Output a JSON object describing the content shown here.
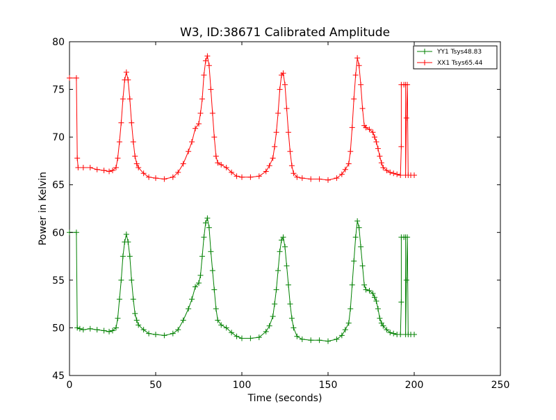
{
  "chart_data": {
    "type": "line",
    "title": "W3, ID:38671 Calibrated Amplitude",
    "xlabel": "Time (seconds)",
    "ylabel": "Power in Kelvin",
    "xlim": [
      0,
      250
    ],
    "ylim": [
      45,
      80
    ],
    "xticks": [
      0,
      50,
      100,
      150,
      200,
      250
    ],
    "yticks": [
      45,
      50,
      55,
      60,
      65,
      70,
      75,
      80
    ],
    "grid": false,
    "legend_position": "top-right",
    "marker": "+",
    "series": [
      {
        "name": "YY1 Tsys48.83",
        "color": "#008000",
        "points": [
          [
            0,
            60
          ],
          [
            4,
            60
          ],
          [
            4.5,
            50
          ],
          [
            6,
            49.9
          ],
          [
            8,
            49.8
          ],
          [
            12,
            49.9
          ],
          [
            16,
            49.8
          ],
          [
            20,
            49.7
          ],
          [
            23,
            49.6
          ],
          [
            25,
            49.7
          ],
          [
            27,
            50
          ],
          [
            28,
            51
          ],
          [
            29,
            53
          ],
          [
            30,
            55
          ],
          [
            31,
            57.5
          ],
          [
            32,
            59
          ],
          [
            33,
            59.8
          ],
          [
            34,
            59
          ],
          [
            35,
            57.5
          ],
          [
            36,
            55
          ],
          [
            37,
            53
          ],
          [
            38,
            51.5
          ],
          [
            39,
            50.8
          ],
          [
            40,
            50.3
          ],
          [
            43,
            49.8
          ],
          [
            46,
            49.4
          ],
          [
            50,
            49.3
          ],
          [
            55,
            49.2
          ],
          [
            60,
            49.4
          ],
          [
            63,
            49.8
          ],
          [
            66,
            50.8
          ],
          [
            69,
            52
          ],
          [
            71,
            53
          ],
          [
            73,
            54.3
          ],
          [
            75,
            54.7
          ],
          [
            76,
            55.5
          ],
          [
            77,
            57.5
          ],
          [
            78,
            59.5
          ],
          [
            79,
            61
          ],
          [
            80,
            61.5
          ],
          [
            81,
            60.5
          ],
          [
            82,
            58
          ],
          [
            83,
            56
          ],
          [
            84,
            54
          ],
          [
            85,
            52
          ],
          [
            86,
            50.8
          ],
          [
            88,
            50.3
          ],
          [
            91,
            50
          ],
          [
            94,
            49.5
          ],
          [
            97,
            49.1
          ],
          [
            100,
            48.9
          ],
          [
            105,
            48.9
          ],
          [
            110,
            49
          ],
          [
            114,
            49.6
          ],
          [
            116,
            50.2
          ],
          [
            118,
            51.2
          ],
          [
            119,
            52.5
          ],
          [
            120,
            54
          ],
          [
            121,
            56
          ],
          [
            122,
            58
          ],
          [
            123,
            59.2
          ],
          [
            124,
            59.5
          ],
          [
            125,
            58.5
          ],
          [
            126,
            56.5
          ],
          [
            127,
            54.5
          ],
          [
            128,
            52.5
          ],
          [
            129,
            51
          ],
          [
            130,
            50
          ],
          [
            132,
            49.1
          ],
          [
            135,
            48.8
          ],
          [
            140,
            48.7
          ],
          [
            145,
            48.7
          ],
          [
            150,
            48.6
          ],
          [
            155,
            48.8
          ],
          [
            158,
            49.2
          ],
          [
            160,
            49.8
          ],
          [
            162,
            50.5
          ],
          [
            163,
            52
          ],
          [
            164,
            54.5
          ],
          [
            165,
            57
          ],
          [
            166,
            59.5
          ],
          [
            167,
            61.2
          ],
          [
            168,
            60.5
          ],
          [
            169,
            58.5
          ],
          [
            170,
            56.5
          ],
          [
            171,
            54.5
          ],
          [
            172,
            54
          ],
          [
            174,
            53.9
          ],
          [
            176,
            53.6
          ],
          [
            177,
            53.2
          ],
          [
            178,
            52.8
          ],
          [
            179,
            52
          ],
          [
            180,
            51
          ],
          [
            181,
            50.5
          ],
          [
            182,
            50.2
          ],
          [
            184,
            49.8
          ],
          [
            186,
            49.5
          ],
          [
            188,
            49.4
          ],
          [
            190,
            49.3
          ],
          [
            192,
            49.3
          ],
          [
            192.5,
            52.7
          ],
          [
            192.5,
            59.5
          ],
          [
            194,
            59.5
          ],
          [
            195,
            59.5
          ],
          [
            195,
            49.3
          ],
          [
            195.5,
            55
          ],
          [
            196,
            59.5
          ],
          [
            196.5,
            49.3
          ],
          [
            198,
            49.3
          ],
          [
            200,
            49.3
          ]
        ]
      },
      {
        "name": "XX1 Tsys65.44",
        "color": "#ff0000",
        "points": [
          [
            0,
            76.2
          ],
          [
            4,
            76.2
          ],
          [
            4.5,
            67.8
          ],
          [
            5,
            66.8
          ],
          [
            8,
            66.8
          ],
          [
            12,
            66.8
          ],
          [
            16,
            66.6
          ],
          [
            20,
            66.5
          ],
          [
            23,
            66.4
          ],
          [
            25,
            66.5
          ],
          [
            27,
            66.8
          ],
          [
            28,
            67.8
          ],
          [
            29,
            69.5
          ],
          [
            30,
            71.5
          ],
          [
            31,
            74
          ],
          [
            32,
            76
          ],
          [
            33,
            76.8
          ],
          [
            34,
            76
          ],
          [
            35,
            74
          ],
          [
            36,
            71.5
          ],
          [
            37,
            69.5
          ],
          [
            38,
            68
          ],
          [
            39,
            67.2
          ],
          [
            40,
            66.8
          ],
          [
            43,
            66.2
          ],
          [
            46,
            65.8
          ],
          [
            50,
            65.7
          ],
          [
            55,
            65.6
          ],
          [
            60,
            65.8
          ],
          [
            63,
            66.3
          ],
          [
            66,
            67.2
          ],
          [
            69,
            68.5
          ],
          [
            71,
            69.5
          ],
          [
            73,
            70.9
          ],
          [
            75,
            71.4
          ],
          [
            76,
            72.5
          ],
          [
            77,
            74
          ],
          [
            78,
            76.5
          ],
          [
            79,
            78
          ],
          [
            80,
            78.5
          ],
          [
            81,
            77.5
          ],
          [
            82,
            75
          ],
          [
            83,
            72.5
          ],
          [
            84,
            70
          ],
          [
            85,
            68
          ],
          [
            86,
            67.3
          ],
          [
            88,
            67.1
          ],
          [
            91,
            66.8
          ],
          [
            94,
            66.3
          ],
          [
            97,
            65.9
          ],
          [
            100,
            65.8
          ],
          [
            105,
            65.8
          ],
          [
            110,
            65.9
          ],
          [
            114,
            66.4
          ],
          [
            116,
            67
          ],
          [
            118,
            67.8
          ],
          [
            119,
            69
          ],
          [
            120,
            70.5
          ],
          [
            121,
            72.5
          ],
          [
            122,
            75
          ],
          [
            123,
            76.5
          ],
          [
            124,
            76.7
          ],
          [
            125,
            75.5
          ],
          [
            126,
            73
          ],
          [
            127,
            70.5
          ],
          [
            128,
            68.5
          ],
          [
            129,
            67
          ],
          [
            130,
            66.2
          ],
          [
            132,
            65.8
          ],
          [
            135,
            65.7
          ],
          [
            140,
            65.6
          ],
          [
            145,
            65.6
          ],
          [
            150,
            65.5
          ],
          [
            155,
            65.7
          ],
          [
            158,
            66.1
          ],
          [
            160,
            66.6
          ],
          [
            162,
            67.2
          ],
          [
            163,
            68.5
          ],
          [
            164,
            71
          ],
          [
            165,
            74
          ],
          [
            166,
            76.5
          ],
          [
            167,
            78.3
          ],
          [
            168,
            77.5
          ],
          [
            169,
            75.5
          ],
          [
            170,
            73
          ],
          [
            171,
            71.2
          ],
          [
            172,
            71
          ],
          [
            174,
            70.8
          ],
          [
            176,
            70.5
          ],
          [
            177,
            70
          ],
          [
            178,
            69.5
          ],
          [
            179,
            68.8
          ],
          [
            180,
            68
          ],
          [
            181,
            67.3
          ],
          [
            182,
            66.8
          ],
          [
            184,
            66.5
          ],
          [
            186,
            66.3
          ],
          [
            188,
            66.2
          ],
          [
            190,
            66.1
          ],
          [
            192,
            66
          ],
          [
            192.5,
            69
          ],
          [
            192.5,
            75.5
          ],
          [
            194,
            75.5
          ],
          [
            195,
            75.5
          ],
          [
            195,
            66
          ],
          [
            195.5,
            72
          ],
          [
            196,
            75.5
          ],
          [
            196.5,
            66
          ],
          [
            198,
            66
          ],
          [
            200,
            66
          ]
        ]
      }
    ]
  }
}
